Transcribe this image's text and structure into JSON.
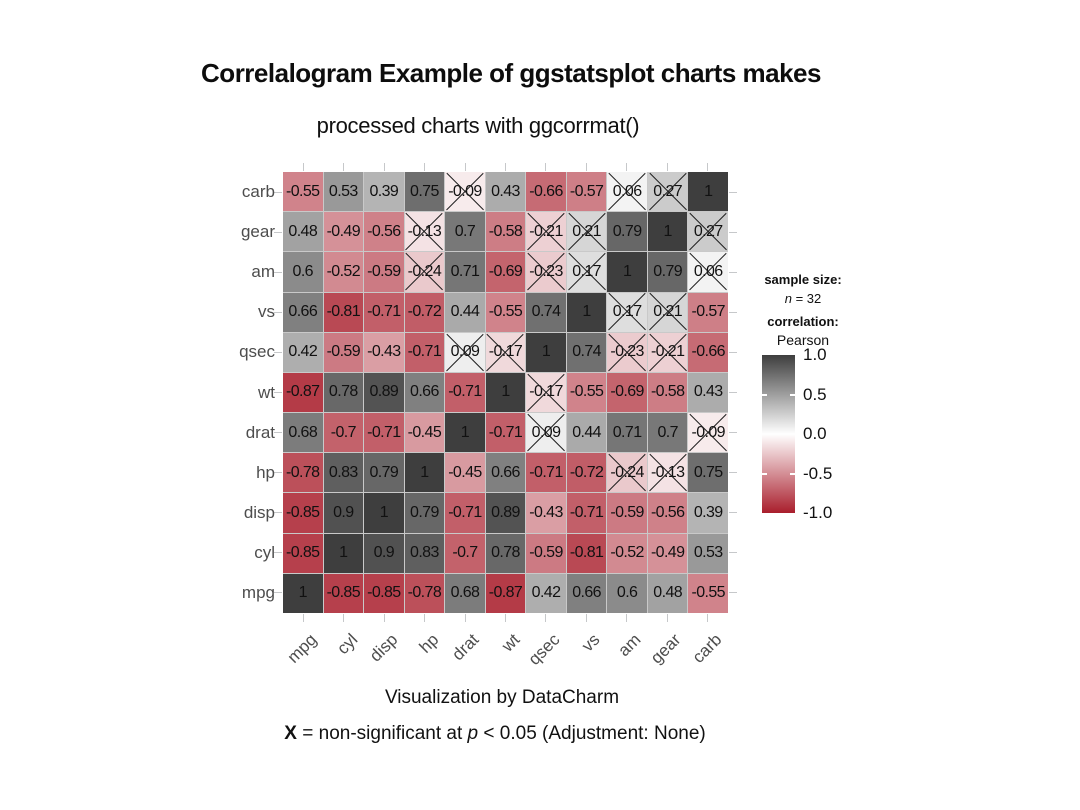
{
  "chart_data": {
    "type": "heatmap",
    "title": "Correlalogram Example of ggstatsplot charts makes",
    "subtitle": "processed charts with ggcorrmat()",
    "caption_line1": "Visualization by DataCharm",
    "caption_line2": {
      "x": "X",
      "mid": " = non-significant at ",
      "p": "p",
      "end": " < 0.05 (Adjustment: None)"
    },
    "variables": [
      "mpg",
      "cyl",
      "disp",
      "hp",
      "drat",
      "wt",
      "qsec",
      "vs",
      "am",
      "gear",
      "carb"
    ],
    "rows_top_to_bottom": [
      "carb",
      "gear",
      "am",
      "vs",
      "qsec",
      "wt",
      "drat",
      "hp",
      "disp",
      "cyl",
      "mpg"
    ],
    "values": {
      "carb": [
        -0.55,
        0.53,
        0.39,
        0.75,
        -0.09,
        0.43,
        -0.66,
        -0.57,
        0.06,
        0.27,
        1
      ],
      "gear": [
        0.48,
        -0.49,
        -0.56,
        -0.13,
        0.7,
        -0.58,
        -0.21,
        0.21,
        0.79,
        1,
        0.27
      ],
      "am": [
        0.6,
        -0.52,
        -0.59,
        -0.24,
        0.71,
        -0.69,
        -0.23,
        0.17,
        1,
        0.79,
        0.06
      ],
      "vs": [
        0.66,
        -0.81,
        -0.71,
        -0.72,
        0.44,
        -0.55,
        0.74,
        1,
        0.17,
        0.21,
        -0.57
      ],
      "qsec": [
        0.42,
        -0.59,
        -0.43,
        -0.71,
        0.09,
        -0.17,
        1,
        0.74,
        -0.23,
        -0.21,
        -0.66
      ],
      "wt": [
        -0.87,
        0.78,
        0.89,
        0.66,
        -0.71,
        1,
        -0.17,
        -0.55,
        -0.69,
        -0.58,
        0.43
      ],
      "drat": [
        0.68,
        -0.7,
        -0.71,
        -0.45,
        1,
        -0.71,
        0.09,
        0.44,
        0.71,
        0.7,
        -0.09
      ],
      "hp": [
        -0.78,
        0.83,
        0.79,
        1,
        -0.45,
        0.66,
        -0.71,
        -0.72,
        -0.24,
        -0.13,
        0.75
      ],
      "disp": [
        -0.85,
        0.9,
        1,
        0.79,
        -0.71,
        0.89,
        -0.43,
        -0.71,
        -0.59,
        -0.56,
        0.39
      ],
      "cyl": [
        -0.85,
        1,
        0.9,
        0.83,
        -0.7,
        0.78,
        -0.59,
        -0.81,
        -0.52,
        -0.49,
        0.53
      ],
      "mpg": [
        1,
        -0.85,
        -0.85,
        -0.78,
        0.68,
        -0.87,
        0.42,
        0.66,
        0.6,
        0.48,
        -0.55
      ]
    },
    "non_significant_pairs": [
      [
        "carb",
        "drat"
      ],
      [
        "carb",
        "am"
      ],
      [
        "carb",
        "gear"
      ],
      [
        "gear",
        "hp"
      ],
      [
        "gear",
        "qsec"
      ],
      [
        "gear",
        "vs"
      ],
      [
        "am",
        "hp"
      ],
      [
        "am",
        "qsec"
      ],
      [
        "am",
        "vs"
      ],
      [
        "qsec",
        "drat"
      ],
      [
        "qsec",
        "wt"
      ]
    ],
    "value_range": [
      -1,
      1
    ],
    "legend": {
      "position": "right",
      "sample_size_label": "sample size:",
      "n_symbol": "n",
      "n_value": " = 32",
      "correlation_label": "correlation:",
      "method": "Pearson",
      "colorbar_ticks": [
        "1.0",
        "0.5",
        "0.0",
        "-0.5",
        "-1.0"
      ]
    },
    "colors": {
      "positive_end": "#3E3E3E",
      "midpoint": "#FFFFFF",
      "negative_end": "#A91E2C",
      "grid": "#C9C9C9",
      "axis_text": "#4D4D4D",
      "cross": "#1D1D1D"
    }
  }
}
